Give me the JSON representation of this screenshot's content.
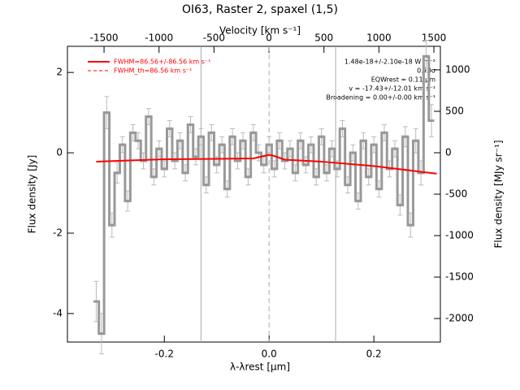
{
  "chart_data": {
    "type": "step",
    "title": "OI63, Raster 2, spaxel (1,5)",
    "xlabel": "λ-λrest [μm]",
    "ylabel": "Flux density [Jy]",
    "x2label": "Velocity [km s⁻¹]",
    "y2label": "Flux density [MJy sr⁻¹]",
    "xlim": [
      -0.385,
      0.327
    ],
    "ylim": [
      -4.71,
      2.65
    ],
    "x2lim": [
      -1833,
      1559
    ],
    "y2lim": [
      -2284,
      1284
    ],
    "xticks": [
      -0.2,
      {
        "value": 0,
        "label": "0.0"
      },
      0.2
    ],
    "yticks": [
      -4,
      -2,
      0,
      2
    ],
    "x2ticks": [
      -1500,
      -1000,
      -500,
      0,
      500,
      1000,
      1500
    ],
    "y2ticks": [
      -2000,
      -1500,
      -1000,
      -500,
      0,
      500,
      1000
    ],
    "vlines": [
      -0.13,
      0,
      0.127
    ],
    "spectrum": {
      "color": "#999999",
      "x": [
        -0.33,
        -0.32,
        -0.31,
        -0.3,
        -0.29,
        -0.28,
        -0.27,
        -0.26,
        -0.25,
        -0.24,
        -0.23,
        -0.22,
        -0.21,
        -0.2,
        -0.19,
        -0.18,
        -0.17,
        -0.16,
        -0.15,
        -0.14,
        -0.13,
        -0.12,
        -0.11,
        -0.1,
        -0.09,
        -0.08,
        -0.07,
        -0.06,
        -0.05,
        -0.04,
        -0.03,
        -0.02,
        -0.01,
        0.0,
        0.01,
        0.02,
        0.03,
        0.04,
        0.05,
        0.06,
        0.07,
        0.08,
        0.09,
        0.1,
        0.11,
        0.12,
        0.13,
        0.14,
        0.15,
        0.16,
        0.17,
        0.18,
        0.19,
        0.2,
        0.21,
        0.22,
        0.23,
        0.24,
        0.25,
        0.26,
        0.27,
        0.28,
        0.29,
        0.3,
        0.31
      ],
      "values": [
        -3.7,
        -4.5,
        1.0,
        -1.8,
        -0.5,
        0.2,
        -1.2,
        0.5,
        0.3,
        -0.2,
        0.9,
        -0.6,
        0.1,
        -0.4,
        0.6,
        -0.2,
        0.3,
        -0.5,
        0.7,
        -0.1,
        0.4,
        -0.8,
        0.5,
        -0.3,
        0.2,
        -0.9,
        0.4,
        -0.2,
        0.3,
        -0.6,
        0.5,
        0.0,
        -0.3,
        0.2,
        -0.4,
        0.3,
        -0.2,
        0.1,
        -0.5,
        0.3,
        -0.3,
        0.2,
        -0.6,
        0.4,
        -0.5,
        0.1,
        -0.4,
        0.6,
        -0.8,
        0.0,
        -1.2,
        0.3,
        -0.6,
        0.2,
        -0.9,
        0.5,
        -0.4,
        0.1,
        -1.3,
        0.4,
        -1.8,
        0.3,
        -0.5,
        2.4,
        0.8
      ],
      "errors": [
        0.5,
        0.5,
        0.4,
        0.3,
        0.25,
        0.2,
        0.25,
        0.2,
        0.2,
        0.2,
        0.2,
        0.2,
        0.2,
        0.2,
        0.2,
        0.2,
        0.2,
        0.2,
        0.2,
        0.2,
        0.2,
        0.2,
        0.2,
        0.2,
        0.2,
        0.2,
        0.2,
        0.2,
        0.2,
        0.2,
        0.2,
        0.2,
        0.2,
        0.2,
        0.2,
        0.2,
        0.2,
        0.2,
        0.2,
        0.2,
        0.2,
        0.2,
        0.2,
        0.2,
        0.2,
        0.2,
        0.2,
        0.2,
        0.2,
        0.2,
        0.2,
        0.2,
        0.2,
        0.2,
        0.2,
        0.2,
        0.2,
        0.2,
        0.25,
        0.25,
        0.3,
        0.3,
        0.3,
        0.4,
        0.4
      ]
    },
    "fit": {
      "name": "FWHM=86.56+/-86.56 km s⁻¹",
      "color": "#ff0000",
      "x": [
        -0.33,
        -0.2,
        -0.1,
        -0.03,
        -0.01,
        0,
        0.01,
        0.03,
        0.1,
        0.2,
        0.32
      ],
      "values": [
        -0.22,
        -0.16,
        -0.15,
        -0.14,
        -0.08,
        -0.05,
        -0.08,
        -0.17,
        -0.22,
        -0.33,
        -0.52
      ]
    },
    "fit_th": {
      "name": "FWHM_th=86.56 km s⁻¹",
      "color": "#ff0000"
    },
    "annotations": [
      "1.48e-18+/-2.10e-18 W m⁻²",
      "0.70σ",
      "EQWrest = 0.11 μm",
      "v = -17.43+/-12.01 km s⁻¹",
      "Broadening = 0.00+/-0.00 km s⁻¹"
    ]
  }
}
